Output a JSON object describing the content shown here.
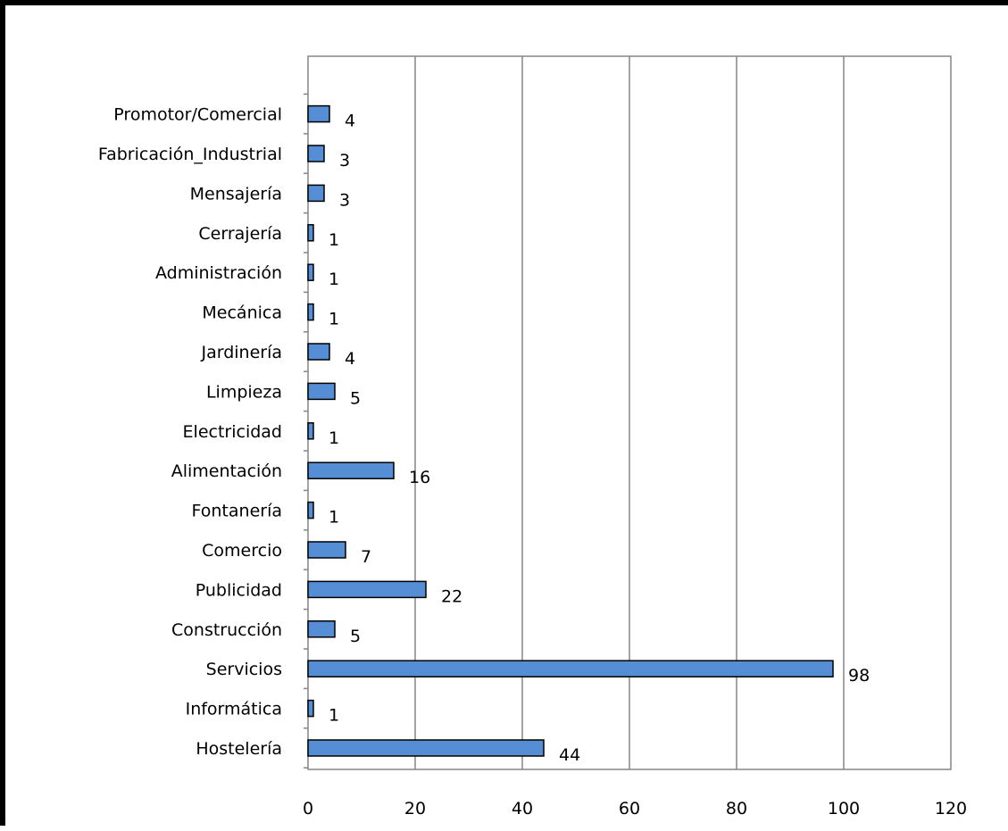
{
  "chart_data": {
    "type": "bar",
    "orientation": "horizontal",
    "title": "",
    "xlabel": "",
    "ylabel": "",
    "categories": [
      "Hostelería",
      "Informática",
      "Servicios",
      "Construcción",
      "Publicidad",
      "Comercio",
      "Fontanería",
      "Alimentación",
      "Electricidad",
      "Limpieza",
      "Jardinería",
      "Mecánica",
      "Administración",
      "Cerrajería",
      "Mensajería",
      "Fabricación_Industrial",
      "Promotor/Comercial"
    ],
    "values": [
      44,
      1,
      98,
      5,
      22,
      7,
      1,
      16,
      1,
      5,
      4,
      1,
      1,
      1,
      3,
      3,
      4
    ],
    "xlim": [
      0,
      120
    ],
    "xticks": [
      0,
      20,
      40,
      60,
      80,
      100,
      120
    ],
    "grid": "vertical",
    "legend": "none",
    "data_labels": true,
    "colors": {
      "bar_fill": "#558ED5",
      "bar_stroke": "#000000",
      "gridline": "#868686",
      "axis": "#868686"
    }
  }
}
